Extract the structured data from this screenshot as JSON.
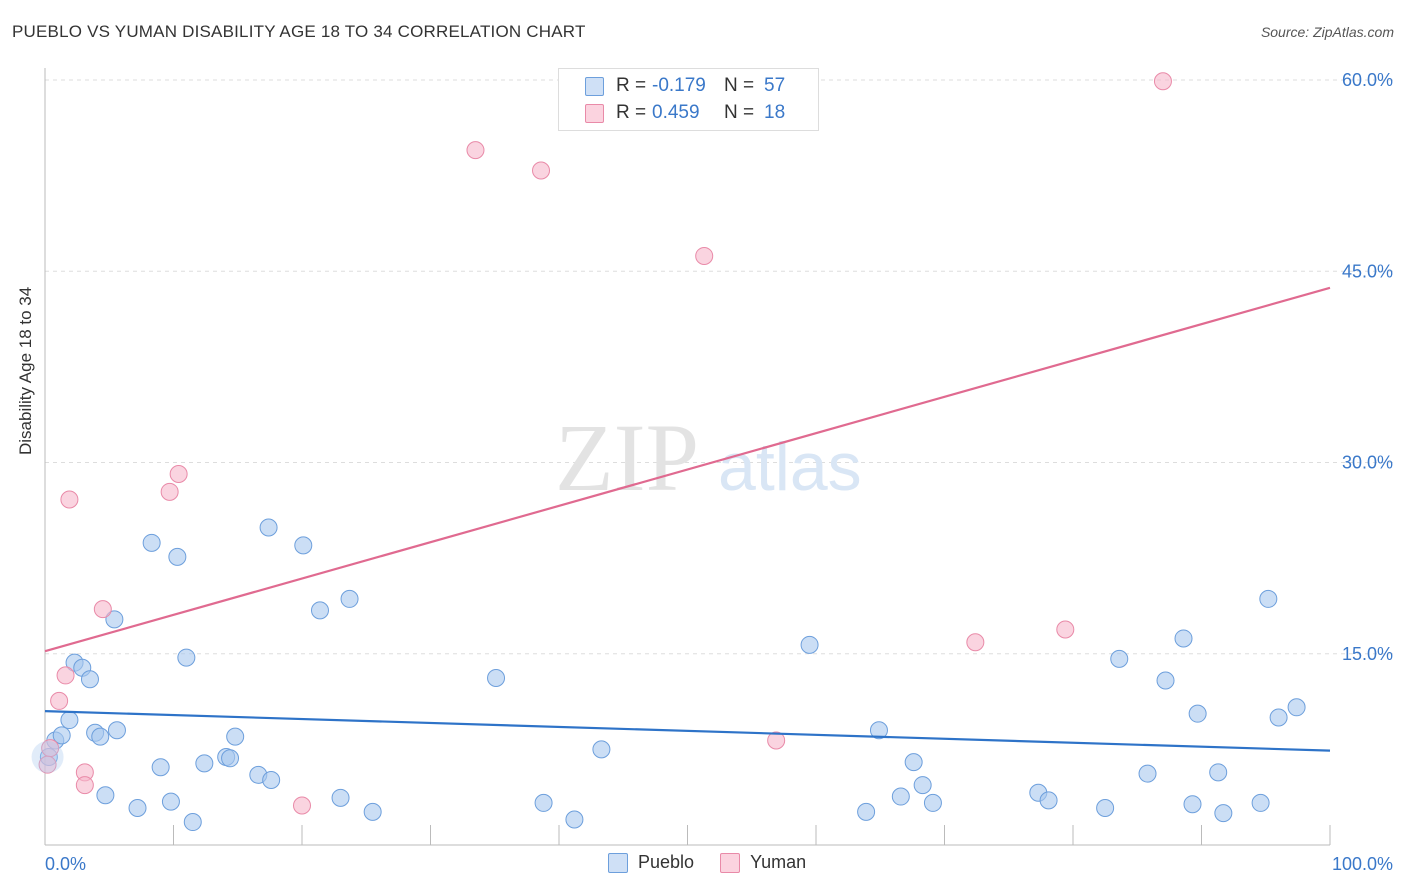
{
  "title": "PUEBLO VS YUMAN DISABILITY AGE 18 TO 34 CORRELATION CHART",
  "source": "Source: ZipAtlas.com",
  "watermark": {
    "zip": "ZIP",
    "atlas": "atlas"
  },
  "legend_top": {
    "rows": [
      {
        "r_label": "R =",
        "r_value": "-0.179",
        "n_label": "N =",
        "n_value": "57",
        "color": "#a9c8ef"
      },
      {
        "r_label": "R =",
        "r_value": "0.459",
        "n_label": "N =",
        "n_value": "18",
        "color": "#f7b8cb"
      }
    ]
  },
  "legend_bottom": [
    {
      "label": "Pueblo",
      "color": "#a9c8ef"
    },
    {
      "label": "Yuman",
      "color": "#f7b8cb"
    }
  ],
  "chart_data": {
    "type": "scatter",
    "title": "PUEBLO VS YUMAN DISABILITY AGE 18 TO 34 CORRELATION CHART",
    "xlabel": "",
    "ylabel": "Disability Age 18 to 34",
    "xlim": [
      0,
      100
    ],
    "ylim": [
      0,
      60
    ],
    "x_tick_labels": [
      "0.0%",
      "100.0%"
    ],
    "y_ticks": [
      15,
      30,
      45,
      60
    ],
    "y_tick_labels": [
      "15.0%",
      "30.0%",
      "45.0%",
      "60.0%"
    ],
    "grid": true,
    "legend_position": "top-center",
    "series": [
      {
        "name": "Pueblo",
        "color": "#a9c8ef",
        "stroke": "#6d9fdc",
        "trend_color": "#2e73c8",
        "trend": [
          [
            0,
            10.5
          ],
          [
            100,
            7.4
          ]
        ],
        "points": [
          [
            0.3,
            6.9
          ],
          [
            0.8,
            8.2
          ],
          [
            1.3,
            8.6
          ],
          [
            1.9,
            9.8
          ],
          [
            2.3,
            14.3
          ],
          [
            2.9,
            13.9
          ],
          [
            3.5,
            13.0
          ],
          [
            3.9,
            8.8
          ],
          [
            4.3,
            8.5
          ],
          [
            4.7,
            3.9
          ],
          [
            5.4,
            17.7
          ],
          [
            5.6,
            9.0
          ],
          [
            7.2,
            2.9
          ],
          [
            8.3,
            23.7
          ],
          [
            9.0,
            6.1
          ],
          [
            9.8,
            3.4
          ],
          [
            10.3,
            22.6
          ],
          [
            11.0,
            14.7
          ],
          [
            11.5,
            1.8
          ],
          [
            12.4,
            6.4
          ],
          [
            14.1,
            6.9
          ],
          [
            14.4,
            6.8
          ],
          [
            14.8,
            8.5
          ],
          [
            16.6,
            5.5
          ],
          [
            17.4,
            24.9
          ],
          [
            17.6,
            5.1
          ],
          [
            20.1,
            23.5
          ],
          [
            21.4,
            18.4
          ],
          [
            23.0,
            3.7
          ],
          [
            23.7,
            19.3
          ],
          [
            25.5,
            2.6
          ],
          [
            35.1,
            13.1
          ],
          [
            38.8,
            3.3
          ],
          [
            41.2,
            2.0
          ],
          [
            43.3,
            7.5
          ],
          [
            59.5,
            15.7
          ],
          [
            63.9,
            2.6
          ],
          [
            64.9,
            9.0
          ],
          [
            66.6,
            3.8
          ],
          [
            67.6,
            6.5
          ],
          [
            68.3,
            4.7
          ],
          [
            69.1,
            3.3
          ],
          [
            77.3,
            4.1
          ],
          [
            78.1,
            3.5
          ],
          [
            82.5,
            2.9
          ],
          [
            83.6,
            14.6
          ],
          [
            85.8,
            5.6
          ],
          [
            87.2,
            12.9
          ],
          [
            88.6,
            16.2
          ],
          [
            89.3,
            3.2
          ],
          [
            89.7,
            10.3
          ],
          [
            91.3,
            5.7
          ],
          [
            91.7,
            2.5
          ],
          [
            94.6,
            3.3
          ],
          [
            95.2,
            19.3
          ],
          [
            96.0,
            10.0
          ],
          [
            97.4,
            10.8
          ]
        ]
      },
      {
        "name": "Yuman",
        "color": "#f7b8cb",
        "stroke": "#e98aa8",
        "trend_color": "#e06a90",
        "trend": [
          [
            0,
            15.2
          ],
          [
            100,
            43.7
          ]
        ],
        "points": [
          [
            0.4,
            7.6
          ],
          [
            1.1,
            11.3
          ],
          [
            1.6,
            13.3
          ],
          [
            1.9,
            27.1
          ],
          [
            3.1,
            5.7
          ],
          [
            3.1,
            4.7
          ],
          [
            4.5,
            18.5
          ],
          [
            9.7,
            27.7
          ],
          [
            10.4,
            29.1
          ],
          [
            20.0,
            3.1
          ],
          [
            33.5,
            54.5
          ],
          [
            38.6,
            52.9
          ],
          [
            51.3,
            46.2
          ],
          [
            56.9,
            8.2
          ],
          [
            72.4,
            15.9
          ],
          [
            79.4,
            16.9
          ],
          [
            87.0,
            59.9
          ],
          [
            0.2,
            6.3
          ]
        ]
      }
    ]
  }
}
